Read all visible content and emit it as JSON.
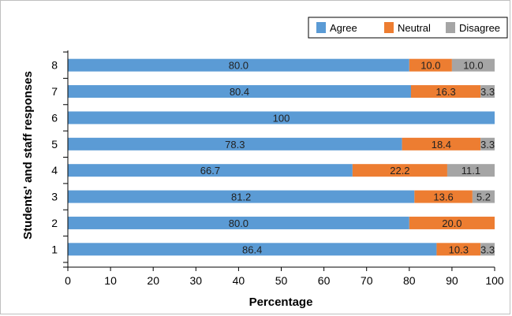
{
  "chart_data": {
    "type": "bar",
    "orientation": "horizontal",
    "stacked": true,
    "title": "",
    "xlabel": "Percentage",
    "ylabel": "Students' and staff responses",
    "xlim": [
      0,
      100
    ],
    "xticks": [
      0,
      10,
      20,
      30,
      40,
      50,
      60,
      70,
      80,
      90,
      100
    ],
    "categories": [
      "1",
      "2",
      "3",
      "4",
      "5",
      "6",
      "7",
      "8"
    ],
    "series": [
      {
        "name": "Agree",
        "color": "#5b9bd5",
        "values": [
          86.4,
          80.0,
          81.2,
          66.7,
          78.3,
          100,
          80.4,
          80.0
        ],
        "labels": [
          "86.4",
          "80.0",
          "81.2",
          "66.7",
          "78.3",
          "100",
          "80.4",
          "80.0"
        ]
      },
      {
        "name": "Neutral",
        "color": "#ed7d31",
        "values": [
          10.3,
          20.0,
          13.6,
          22.2,
          18.4,
          0,
          16.3,
          10.0
        ],
        "labels": [
          "10.3",
          "20.0",
          "13.6",
          "22.2",
          "18.4",
          "",
          "16.3",
          "10.0"
        ]
      },
      {
        "name": "Disagree",
        "color": "#a5a5a5",
        "values": [
          3.3,
          0,
          5.2,
          11.1,
          3.3,
          0,
          3.3,
          10.0
        ],
        "labels": [
          "3.3",
          "",
          "5.2",
          "11.1",
          "3.3",
          "",
          "3.3",
          "10.0"
        ]
      }
    ],
    "grid": false,
    "legend_position": "top-right"
  }
}
